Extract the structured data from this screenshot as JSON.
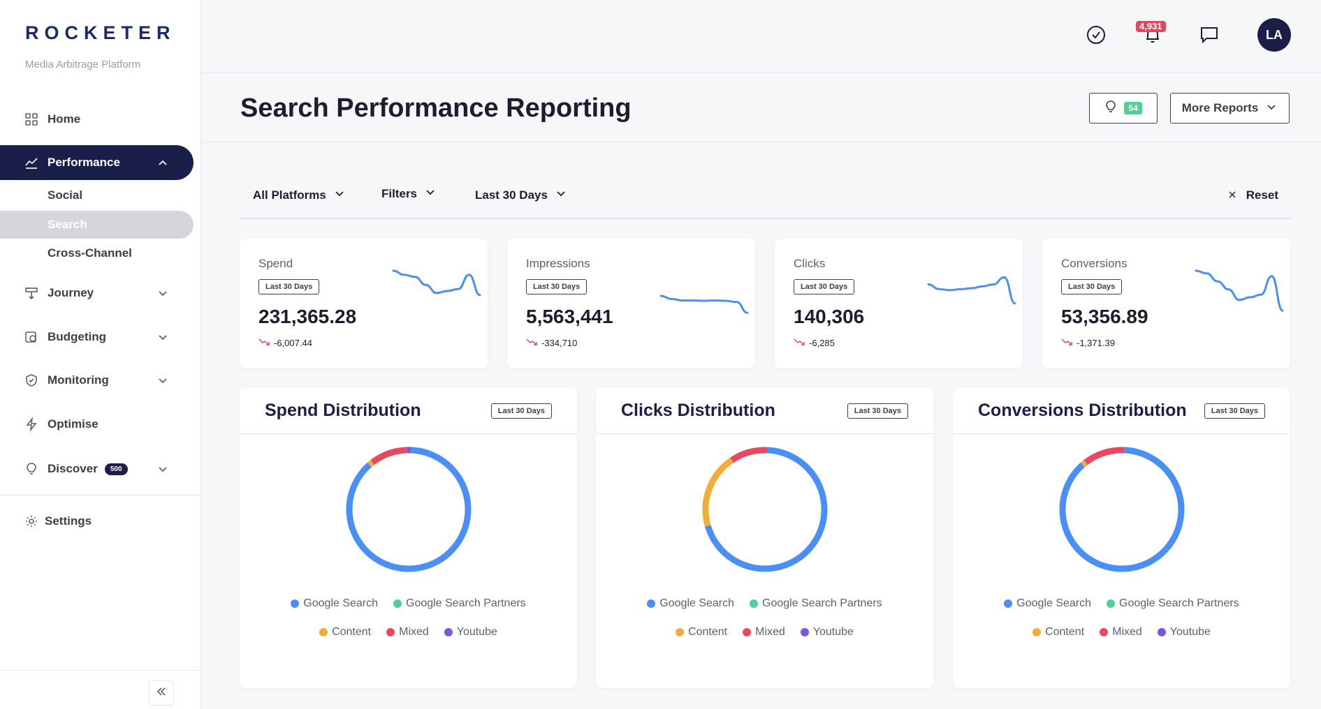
{
  "brand": {
    "name": "ROCKETER",
    "tagline": "Media Arbitrage Platform"
  },
  "sidebar": {
    "items": [
      {
        "label": "Home",
        "icon": "grid-icon"
      },
      {
        "label": "Performance",
        "icon": "chart-line-icon"
      },
      {
        "label": "Journey",
        "icon": "journey-icon"
      },
      {
        "label": "Budgeting",
        "icon": "budget-icon"
      },
      {
        "label": "Monitoring",
        "icon": "shield-icon"
      },
      {
        "label": "Optimise",
        "icon": "bolt-icon"
      },
      {
        "label": "Discover",
        "icon": "bulb-icon",
        "badge": "500"
      },
      {
        "label": "Settings",
        "icon": "gear-icon"
      }
    ],
    "performance_sub": [
      "Social",
      "Search",
      "Cross-Channel"
    ]
  },
  "header": {
    "notifications_count": "4,931",
    "avatar_initials": "LA"
  },
  "page": {
    "title": "Search Performance Reporting",
    "ideas_count": "54",
    "more_reports": "More Reports"
  },
  "filters": {
    "platforms": "All Platforms",
    "filters": "Filters",
    "range": "Last 30 Days",
    "reset": "Reset"
  },
  "kpis": [
    {
      "label": "Spend",
      "period": "Last 30 Days",
      "value": "231,365.28",
      "delta": "-6,007.44",
      "spark": [
        0.0,
        0.1,
        0.15,
        0.35,
        0.55,
        0.5,
        0.45,
        0.1,
        0.6
      ]
    },
    {
      "label": "Impressions",
      "period": "Last 30 Days",
      "value": "5,563,441",
      "delta": "-334,710",
      "spark": [
        0.0,
        0.1,
        0.15,
        0.15,
        0.16,
        0.15,
        0.16,
        0.2,
        0.55
      ]
    },
    {
      "label": "Clicks",
      "period": "Last 30 Days",
      "value": "140,306",
      "delta": "-6,285",
      "spark": [
        0.2,
        0.3,
        0.32,
        0.3,
        0.28,
        0.24,
        0.2,
        0.05,
        0.6
      ]
    },
    {
      "label": "Conversions",
      "period": "Last 30 Days",
      "value": "53,356.89",
      "delta": "-1,371.39",
      "spark": [
        0.0,
        0.05,
        0.2,
        0.35,
        0.55,
        0.5,
        0.45,
        0.1,
        0.75
      ]
    }
  ],
  "distributions": [
    {
      "title": "Spend Distribution",
      "period": "Last 30 Days",
      "chart_data": {
        "type": "pie",
        "labels": [
          "Google Search",
          "Google Search Partners",
          "Content",
          "Mixed",
          "Youtube"
        ],
        "values": [
          88,
          0,
          1,
          10,
          1
        ]
      }
    },
    {
      "title": "Clicks Distribution",
      "period": "Last 30 Days",
      "chart_data": {
        "type": "pie",
        "labels": [
          "Google Search",
          "Google Search Partners",
          "Content",
          "Mixed",
          "Youtube"
        ],
        "values": [
          70,
          0,
          20,
          10,
          0
        ]
      }
    },
    {
      "title": "Conversions Distribution",
      "period": "Last 30 Days",
      "chart_data": {
        "type": "pie",
        "labels": [
          "Google Search",
          "Google Search Partners",
          "Content",
          "Mixed",
          "Youtube"
        ],
        "values": [
          88,
          0,
          1,
          11,
          0
        ]
      }
    }
  ],
  "legend": [
    {
      "label": "Google Search",
      "color": "#4a8ff5"
    },
    {
      "label": "Google Search Partners",
      "color": "#4fd196"
    },
    {
      "label": "Content",
      "color": "#f0ad3a"
    },
    {
      "label": "Mixed",
      "color": "#e9485e"
    },
    {
      "label": "Youtube",
      "color": "#7a58d6"
    }
  ],
  "colors": {
    "accent": "#1a1f4a",
    "spark": "#4a8ff5",
    "negative": "#e9485e"
  }
}
